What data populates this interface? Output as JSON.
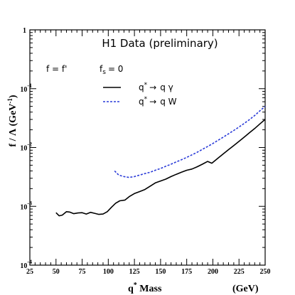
{
  "chart_data": {
    "type": "line",
    "title": "H1 Data (preliminary)",
    "annotation": {
      "f_eq": "f = f'",
      "fs": "f",
      "fs_sub": "s",
      "fs_val": "= 0"
    },
    "xlabel": {
      "main": "q",
      "sup": "*",
      "rest": " Mass",
      "unit": "(GeV)"
    },
    "ylabel": {
      "text": "f / Λ (GeV",
      "sup": "-1",
      "close": ")"
    },
    "xlim": [
      25,
      250
    ],
    "ylim": [
      0.0001,
      1
    ],
    "yscale": "log",
    "x_ticks": [
      25,
      50,
      75,
      100,
      125,
      150,
      175,
      200,
      225,
      250
    ],
    "y_ticks": [
      {
        "base": "1",
        "exp": ""
      },
      {
        "base": "10",
        "exp": "-1"
      },
      {
        "base": "10",
        "exp": "-2"
      },
      {
        "base": "10",
        "exp": "-3"
      },
      {
        "base": "10",
        "exp": "-4"
      }
    ],
    "legend_placement": "top-center",
    "series": [
      {
        "name": "q* → q γ",
        "legend": {
          "q": "q",
          "star": "*",
          "arrow": "→",
          "prod": "q γ"
        },
        "color": "#000000",
        "dash": "solid",
        "points": [
          [
            50,
            0.00078
          ],
          [
            53,
            0.00069
          ],
          [
            56,
            0.00071
          ],
          [
            60,
            0.00081
          ],
          [
            63,
            0.0008
          ],
          [
            67,
            0.00075
          ],
          [
            71,
            0.00077
          ],
          [
            75,
            0.00078
          ],
          [
            79,
            0.00074
          ],
          [
            83,
            0.00079
          ],
          [
            87,
            0.00076
          ],
          [
            91,
            0.00073
          ],
          [
            95,
            0.00074
          ],
          [
            99,
            0.00081
          ],
          [
            103,
            0.00096
          ],
          [
            107,
            0.00113
          ],
          [
            111,
            0.00124
          ],
          [
            116,
            0.00128
          ],
          [
            120,
            0.00146
          ],
          [
            125,
            0.00165
          ],
          [
            130,
            0.00178
          ],
          [
            135,
            0.00193
          ],
          [
            140,
            0.0022
          ],
          [
            145,
            0.0025
          ],
          [
            150,
            0.0027
          ],
          [
            155,
            0.0029
          ],
          [
            160,
            0.0032
          ],
          [
            165,
            0.0035
          ],
          [
            170,
            0.0038
          ],
          [
            175,
            0.0041
          ],
          [
            180,
            0.0043
          ],
          [
            185,
            0.0047
          ],
          [
            190,
            0.0052
          ],
          [
            195,
            0.0058
          ],
          [
            199,
            0.0054
          ],
          [
            205,
            0.0066
          ],
          [
            210,
            0.0078
          ],
          [
            215,
            0.0092
          ],
          [
            220,
            0.0108
          ],
          [
            225,
            0.0127
          ],
          [
            230,
            0.015
          ],
          [
            235,
            0.0178
          ],
          [
            240,
            0.021
          ],
          [
            245,
            0.0252
          ],
          [
            250,
            0.03
          ]
        ]
      },
      {
        "name": "q* → q W",
        "legend": {
          "q": "q",
          "star": "*",
          "arrow": "→",
          "prod": "q W"
        },
        "color": "#2a3bd8",
        "dash": "3,2",
        "points": [
          [
            106,
            0.004
          ],
          [
            110,
            0.0034
          ],
          [
            115,
            0.0032
          ],
          [
            120,
            0.0031
          ],
          [
            125,
            0.0032
          ],
          [
            130,
            0.0034
          ],
          [
            135,
            0.0036
          ],
          [
            140,
            0.0038
          ],
          [
            145,
            0.0041
          ],
          [
            150,
            0.0044
          ],
          [
            155,
            0.0048
          ],
          [
            160,
            0.0052
          ],
          [
            165,
            0.0057
          ],
          [
            170,
            0.0062
          ],
          [
            175,
            0.0068
          ],
          [
            180,
            0.0075
          ],
          [
            185,
            0.0083
          ],
          [
            190,
            0.0093
          ],
          [
            195,
            0.0104
          ],
          [
            200,
            0.0117
          ],
          [
            205,
            0.0133
          ],
          [
            210,
            0.015
          ],
          [
            215,
            0.0171
          ],
          [
            220,
            0.0195
          ],
          [
            225,
            0.0223
          ],
          [
            230,
            0.0257
          ],
          [
            235,
            0.0298
          ],
          [
            240,
            0.035
          ],
          [
            245,
            0.042
          ],
          [
            250,
            0.05
          ]
        ]
      }
    ]
  }
}
